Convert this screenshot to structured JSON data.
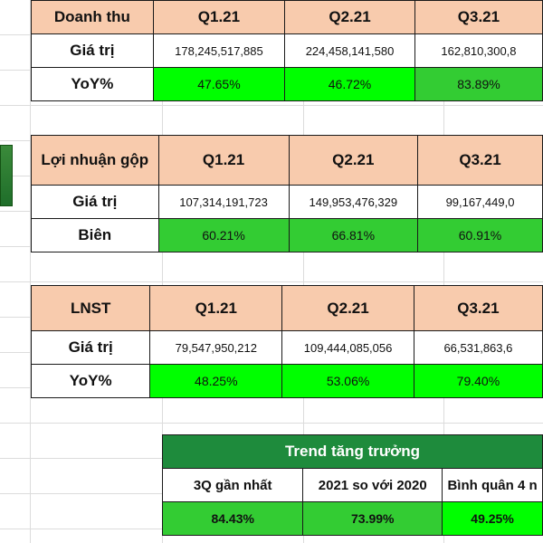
{
  "tables": [
    {
      "header": [
        "Doanh thu",
        "Q1.21",
        "Q2.21",
        "Q3.21"
      ],
      "row1": {
        "label": "Giá trị",
        "values": [
          "178,245,517,885",
          "224,458,141,580",
          "162,810,300,8"
        ]
      },
      "row2": {
        "label": "YoY%",
        "values": [
          "47.65%",
          "46.72%",
          "83.89%"
        ]
      }
    },
    {
      "header": [
        "Lợi nhuận gộp",
        "Q1.21",
        "Q2.21",
        "Q3.21"
      ],
      "row1": {
        "label": "Giá trị",
        "values": [
          "107,314,191,723",
          "149,953,476,329",
          "99,167,449,0"
        ]
      },
      "row2": {
        "label": "Biên",
        "values": [
          "60.21%",
          "66.81%",
          "60.91%"
        ]
      }
    },
    {
      "header": [
        "LNST",
        "Q1.21",
        "Q2.21",
        "Q3.21"
      ],
      "row1": {
        "label": "Giá trị",
        "values": [
          "79,547,950,212",
          "109,444,085,056",
          "66,531,863,6"
        ]
      },
      "row2": {
        "label": "YoY%",
        "values": [
          "48.25%",
          "53.06%",
          "79.40%"
        ]
      }
    }
  ],
  "trend": {
    "title": "Trend tăng trưởng",
    "headers": [
      "3Q gần nhất",
      "2021 so với 2020",
      "Bình quân 4 n"
    ],
    "values": [
      "84.43%",
      "73.99%",
      "49.25%"
    ]
  },
  "colors": {
    "header_bg": "#f8cbad",
    "green_bright": "#00ff00",
    "green_mid": "#33cc33",
    "green_dark": "#00b050",
    "trend_title_bg": "#1e8b3c"
  }
}
